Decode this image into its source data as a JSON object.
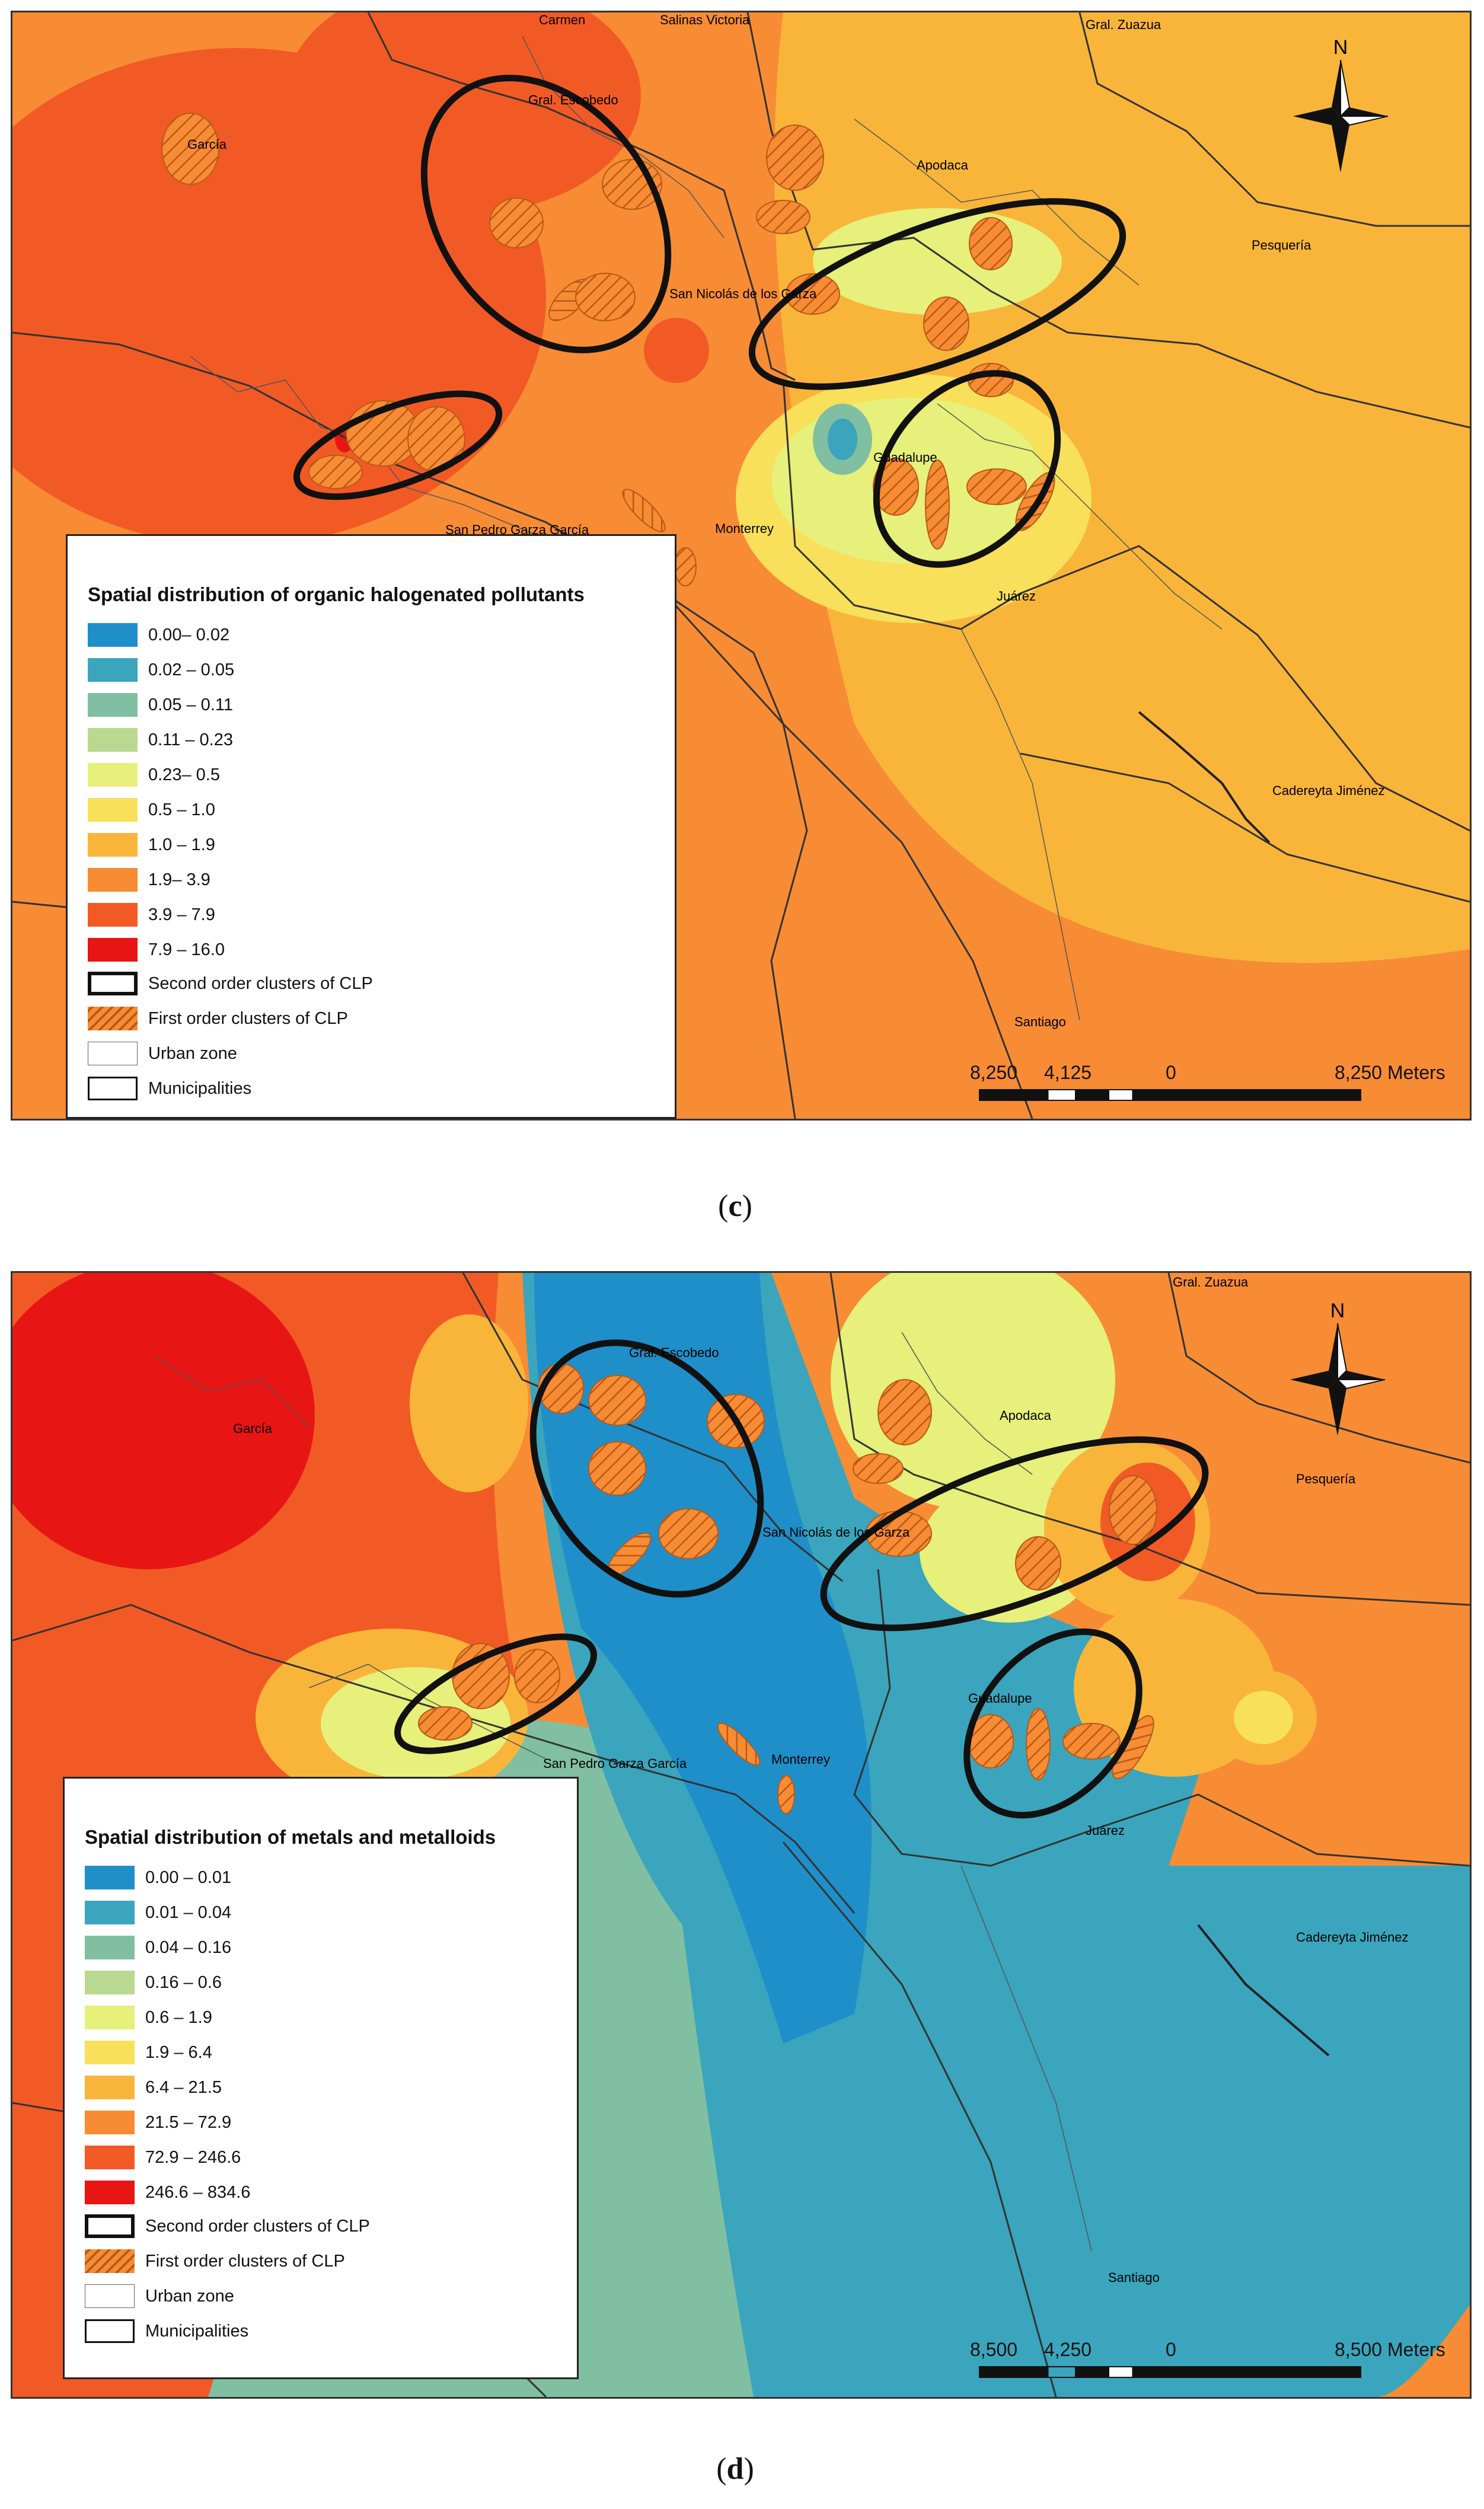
{
  "maps": [
    {
      "id": "c",
      "caption": "c",
      "places": [
        "Carmen",
        "Salinas Victoria",
        "Gral. Zuazua",
        "Gral. Escobedo",
        "García",
        "Apodaca",
        "Pesquería",
        "San Nicolás de los Garza",
        "Guadalupe",
        "San Pedro Garza García",
        "Monterrey",
        "Juárez",
        "Cadereyta Jiménez",
        "Santiago"
      ],
      "north_label": "N",
      "legend": {
        "title": "Spatial distribution of organic halogenated pollutants",
        "classes": [
          {
            "label": "0.00– 0.02",
            "color": "#1f8fc9"
          },
          {
            "label": "0.02 – 0.05",
            "color": "#3aa5bd"
          },
          {
            "label": "0.05 – 0.11",
            "color": "#80bfa2"
          },
          {
            "label": "0.11 – 0.23",
            "color": "#b8d98f"
          },
          {
            "label": "0.23– 0.5",
            "color": "#e6f07a"
          },
          {
            "label": "0.5 – 1.0",
            "color": "#f8e05a"
          },
          {
            "label": "1.0 – 1.9",
            "color": "#f9b53a"
          },
          {
            "label": "1.9– 3.9",
            "color": "#f78c35"
          },
          {
            "label": "3.9 – 7.9",
            "color": "#f25a25"
          },
          {
            "label": "7.9 – 16.0",
            "color": "#e81515"
          }
        ],
        "symbols": [
          "Second order clusters of CLP",
          "First order clusters of CLP",
          "Urban zone",
          "Municipalities"
        ]
      },
      "scale": {
        "labels": [
          "8,250",
          "4,125",
          "0",
          "8,250 Meters"
        ]
      }
    },
    {
      "id": "d",
      "caption": "d",
      "places": [
        "Gral. Zuazua",
        "Gral. Escobedo",
        "García",
        "Apodaca",
        "Pesquería",
        "San Nicolás de los Garza",
        "Guadalupe",
        "San Pedro Garza García",
        "Monterrey",
        "Juárez",
        "Cadereyta Jiménez",
        "Santiago"
      ],
      "north_label": "N",
      "legend": {
        "title": "Spatial distribution of metals and metalloids",
        "classes": [
          {
            "label": "0.00 – 0.01",
            "color": "#1f8fc9"
          },
          {
            "label": "0.01 – 0.04",
            "color": "#3aa5bd"
          },
          {
            "label": "0.04 – 0.16",
            "color": "#80bfa2"
          },
          {
            "label": "0.16 – 0.6",
            "color": "#b8d98f"
          },
          {
            "label": "0.6 – 1.9",
            "color": "#e6f07a"
          },
          {
            "label": "1.9 – 6.4",
            "color": "#f8e05a"
          },
          {
            "label": "6.4 – 21.5",
            "color": "#f9b53a"
          },
          {
            "label": "21.5 – 72.9",
            "color": "#f78c35"
          },
          {
            "label": "72.9 – 246.6",
            "color": "#f25a25"
          },
          {
            "label": "246.6 – 834.6",
            "color": "#e81515"
          }
        ],
        "symbols": [
          "Second order clusters of CLP",
          "First order clusters of CLP",
          "Urban zone",
          "Municipalities"
        ]
      },
      "scale": {
        "labels": [
          "8,500",
          "4,250",
          "0",
          "8,500 Meters"
        ]
      }
    }
  ]
}
